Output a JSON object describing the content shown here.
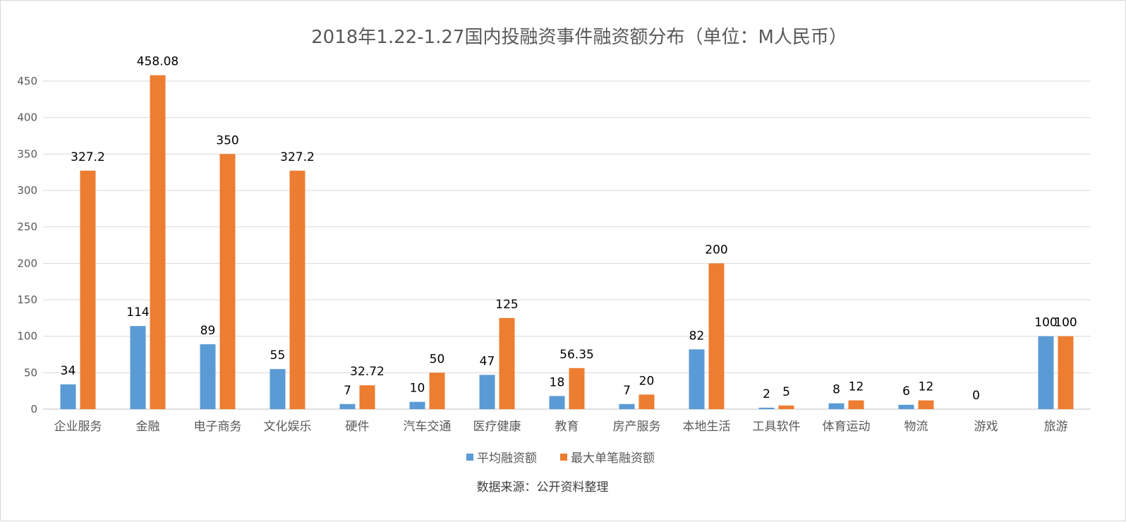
{
  "chart_data": {
    "type": "bar",
    "title": "2018年1.22-1.27国内投融资事件融资额分布（单位：M人民币）",
    "source": "数据来源：公开资料整理",
    "categories": [
      "企业服务",
      "金融",
      "电子商务",
      "文化娱乐",
      "硬件",
      "汽车交通",
      "医疗健康",
      "教育",
      "房产服务",
      "本地生活",
      "工具软件",
      "体育运动",
      "物流",
      "游戏",
      "旅游"
    ],
    "series": [
      {
        "name": "平均融资额",
        "color": "#5b9bd5",
        "values": [
          34,
          114,
          89,
          55,
          7,
          10,
          47,
          18,
          7,
          82,
          2,
          8,
          6,
          0,
          100
        ],
        "labels": [
          "34",
          "114",
          "89",
          "55",
          "7",
          "10",
          "47",
          "18",
          "7",
          "82",
          "2",
          "8",
          "6",
          "0",
          "100"
        ]
      },
      {
        "name": "最大单笔融资额",
        "color": "#ed7d31",
        "values": [
          327.2,
          458.08,
          350,
          327.2,
          32.72,
          50,
          125,
          56.35,
          20,
          200,
          5,
          12,
          12,
          null,
          100
        ],
        "labels": [
          "327.2",
          "458.08",
          "350",
          "327.2",
          "32.72",
          "50",
          "125",
          "56.35",
          "20",
          "200",
          "5",
          "12",
          "12",
          "",
          "100"
        ]
      }
    ],
    "yticks": [
      "0",
      "50",
      "100",
      "150",
      "200",
      "250",
      "300",
      "350",
      "400",
      "450"
    ],
    "ylim": [
      0,
      450
    ],
    "grid": true,
    "legend": "bottom"
  }
}
